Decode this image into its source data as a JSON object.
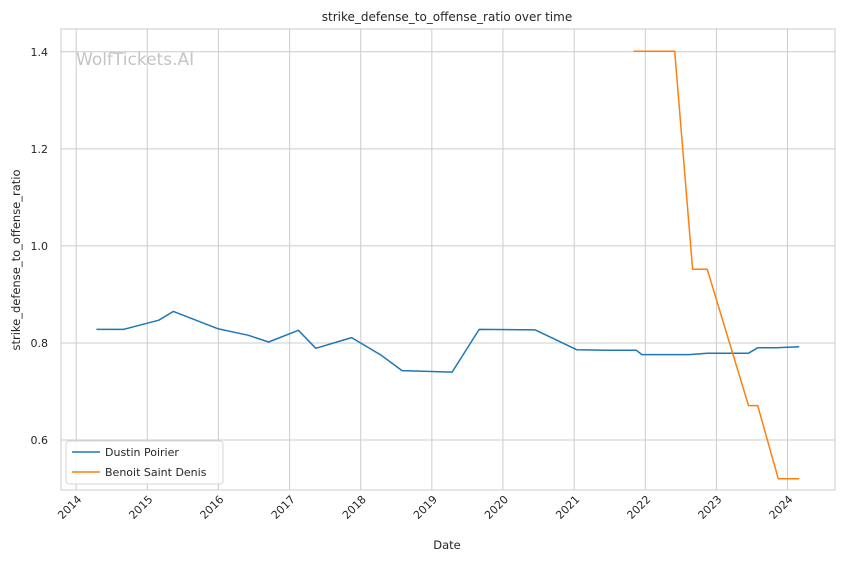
{
  "chart_data": {
    "type": "line",
    "title": "strike_defense_to_offense_ratio over time",
    "xlabel": "Date",
    "ylabel": "strike_defense_to_offense_ratio",
    "watermark": "WolfTickets.AI",
    "x_ticks": [
      "2014",
      "2015",
      "2016",
      "2017",
      "2018",
      "2019",
      "2020",
      "2021",
      "2022",
      "2023",
      "2024"
    ],
    "y_ticks": [
      "0.6",
      "0.8",
      "1.0",
      "1.2",
      "1.4"
    ],
    "xlim": [
      "2013-10-15",
      "2024-09-01"
    ],
    "ylim": [
      0.497,
      1.447
    ],
    "grid": true,
    "legend_position": "lower-left",
    "series": [
      {
        "name": "Dustin Poirier",
        "color": "#1f77b4",
        "points": [
          [
            "2014-04-15",
            0.828
          ],
          [
            "2014-09-01",
            0.828
          ],
          [
            "2015-03-01",
            0.847
          ],
          [
            "2015-05-15",
            0.865
          ],
          [
            "2016-01-01",
            0.829
          ],
          [
            "2016-06-01",
            0.816
          ],
          [
            "2016-09-15",
            0.802
          ],
          [
            "2017-02-15",
            0.826
          ],
          [
            "2017-05-15",
            0.789
          ],
          [
            "2017-11-15",
            0.811
          ],
          [
            "2018-04-15",
            0.775
          ],
          [
            "2018-08-01",
            0.743
          ],
          [
            "2019-04-15",
            0.74
          ],
          [
            "2019-09-01",
            0.828
          ],
          [
            "2020-06-15",
            0.827
          ],
          [
            "2021-01-15",
            0.786
          ],
          [
            "2021-06-15",
            0.785
          ],
          [
            "2021-11-15",
            0.785
          ],
          [
            "2021-12-15",
            0.776
          ],
          [
            "2022-08-15",
            0.776
          ],
          [
            "2022-11-15",
            0.779
          ],
          [
            "2023-06-15",
            0.779
          ],
          [
            "2023-08-01",
            0.79
          ],
          [
            "2023-11-01",
            0.79
          ],
          [
            "2024-03-01",
            0.792
          ]
        ]
      },
      {
        "name": "Benoit Saint Denis",
        "color": "#ff7f0e",
        "points": [
          [
            "2021-11-01",
            1.401
          ],
          [
            "2022-06-01",
            1.401
          ],
          [
            "2022-09-01",
            0.952
          ],
          [
            "2022-11-15",
            0.952
          ],
          [
            "2023-06-15",
            0.671
          ],
          [
            "2023-08-01",
            0.671
          ],
          [
            "2023-11-15",
            0.52
          ],
          [
            "2024-03-01",
            0.52
          ]
        ]
      }
    ]
  }
}
